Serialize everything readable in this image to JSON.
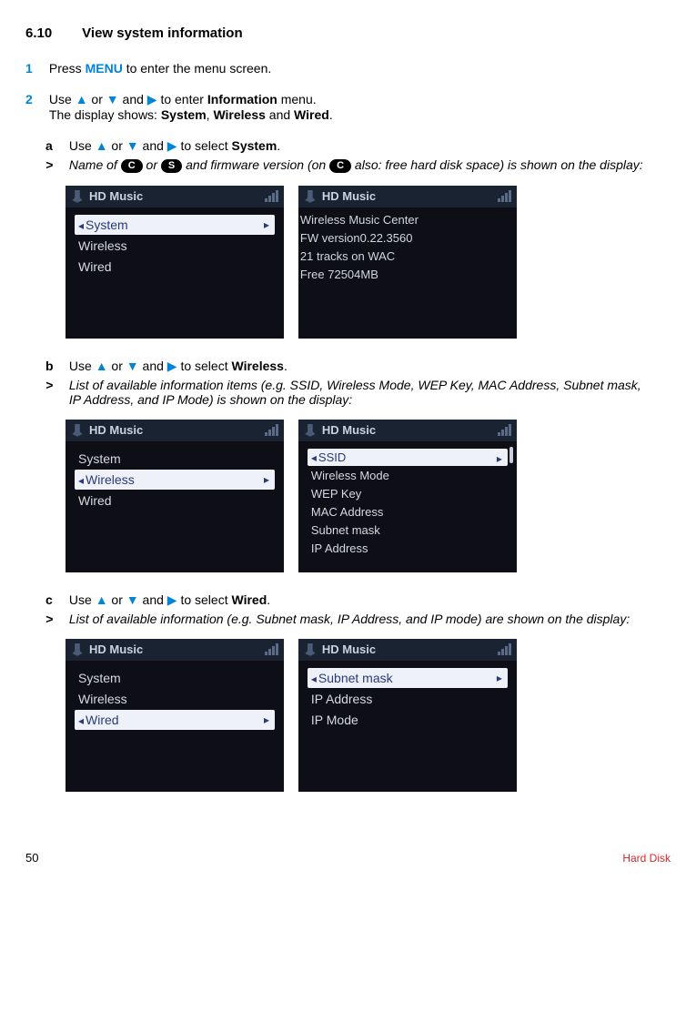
{
  "heading": {
    "num": "6.10",
    "title": "View system information"
  },
  "step1": {
    "num": "1",
    "prefix": "Press ",
    "menu": "MENU",
    "suffix": " to enter the menu screen."
  },
  "step2": {
    "num": "2",
    "line1_a": "Use ",
    "line1_b": " or ",
    "line1_c": " and ",
    "line1_d": " to enter ",
    "line1_bold": "Information",
    "line1_e": " menu.",
    "line2_a": "The display shows: ",
    "line2_b1": "System",
    "line2_b2": "Wireless",
    "line2_b3": "Wired",
    "line2_sep": ", ",
    "line2_and": " and ",
    "line2_end": "."
  },
  "sub_a": {
    "letter": "a",
    "l1": "Use ",
    "l2": " or ",
    "l3": " and ",
    "l4": " to select ",
    "bold": "System",
    "end": ".",
    "gt": ">",
    "it_a": "Name of ",
    "badge_c": "C",
    "it_or": " or ",
    "badge_s": "S",
    "it_b": " and firmware version (on ",
    "badge_c2": "C",
    "it_c": " also: free hard disk space) is shown on the display:"
  },
  "screens_a": {
    "header": "HD Music",
    "left": {
      "items": [
        {
          "label": "System",
          "selected": true,
          "leftArrow": true
        },
        {
          "label": "Wireless"
        },
        {
          "label": "Wired"
        }
      ]
    },
    "right": {
      "lines": [
        "Wireless Music Center",
        "FW version0.22.3560",
        "21 tracks on WAC",
        "Free 72504MB"
      ]
    }
  },
  "sub_b": {
    "letter": "b",
    "l1": "Use ",
    "l2": " or ",
    "l3": " and ",
    "l4": " to select ",
    "bold": "Wireless",
    "end": ".",
    "gt": ">",
    "it": "List of available information items (e.g. SSID, Wireless Mode, WEP Key, MAC Address, Subnet mask, IP Address, and IP Mode) is shown on the display:"
  },
  "screens_b": {
    "header": "HD Music",
    "left": {
      "items": [
        {
          "label": "System"
        },
        {
          "label": "Wireless",
          "selected": true,
          "leftArrow": true
        },
        {
          "label": "Wired"
        }
      ]
    },
    "right": {
      "items": [
        {
          "label": "SSID",
          "selected": true,
          "leftArrow": true
        },
        {
          "label": "Wireless Mode"
        },
        {
          "label": "WEP Key"
        },
        {
          "label": "MAC Address"
        },
        {
          "label": "Subnet mask"
        },
        {
          "label": "IP Address"
        }
      ]
    }
  },
  "sub_c": {
    "letter": "c",
    "l1": "Use ",
    "l2": " or ",
    "l3": " and ",
    "l4": " to select ",
    "bold": "Wired",
    "end": ".",
    "gt": ">",
    "it": "List of available information (e.g. Subnet mask, IP Address, and IP mode) are shown on the display:"
  },
  "screens_c": {
    "header": "HD Music",
    "left": {
      "items": [
        {
          "label": "System"
        },
        {
          "label": "Wireless"
        },
        {
          "label": "Wired",
          "selected": true,
          "leftArrow": true
        }
      ]
    },
    "right": {
      "items": [
        {
          "label": "Subnet mask",
          "selected": true,
          "leftArrow": true
        },
        {
          "label": "IP Address"
        },
        {
          "label": "IP Mode"
        }
      ]
    }
  },
  "footer": {
    "page": "50",
    "label": "Hard Disk"
  },
  "glyphs": {
    "up": "▲",
    "down": "▼",
    "right": "▶"
  },
  "colors": {
    "accent": "#0085d6",
    "screen_bg": "#0e0e17",
    "screen_header_bg": "#1a2332",
    "screen_text": "#d5d9e0",
    "selected_bg": "#eef2f8",
    "selected_text": "#2a3a7a",
    "footer_red": "#d7262b"
  }
}
